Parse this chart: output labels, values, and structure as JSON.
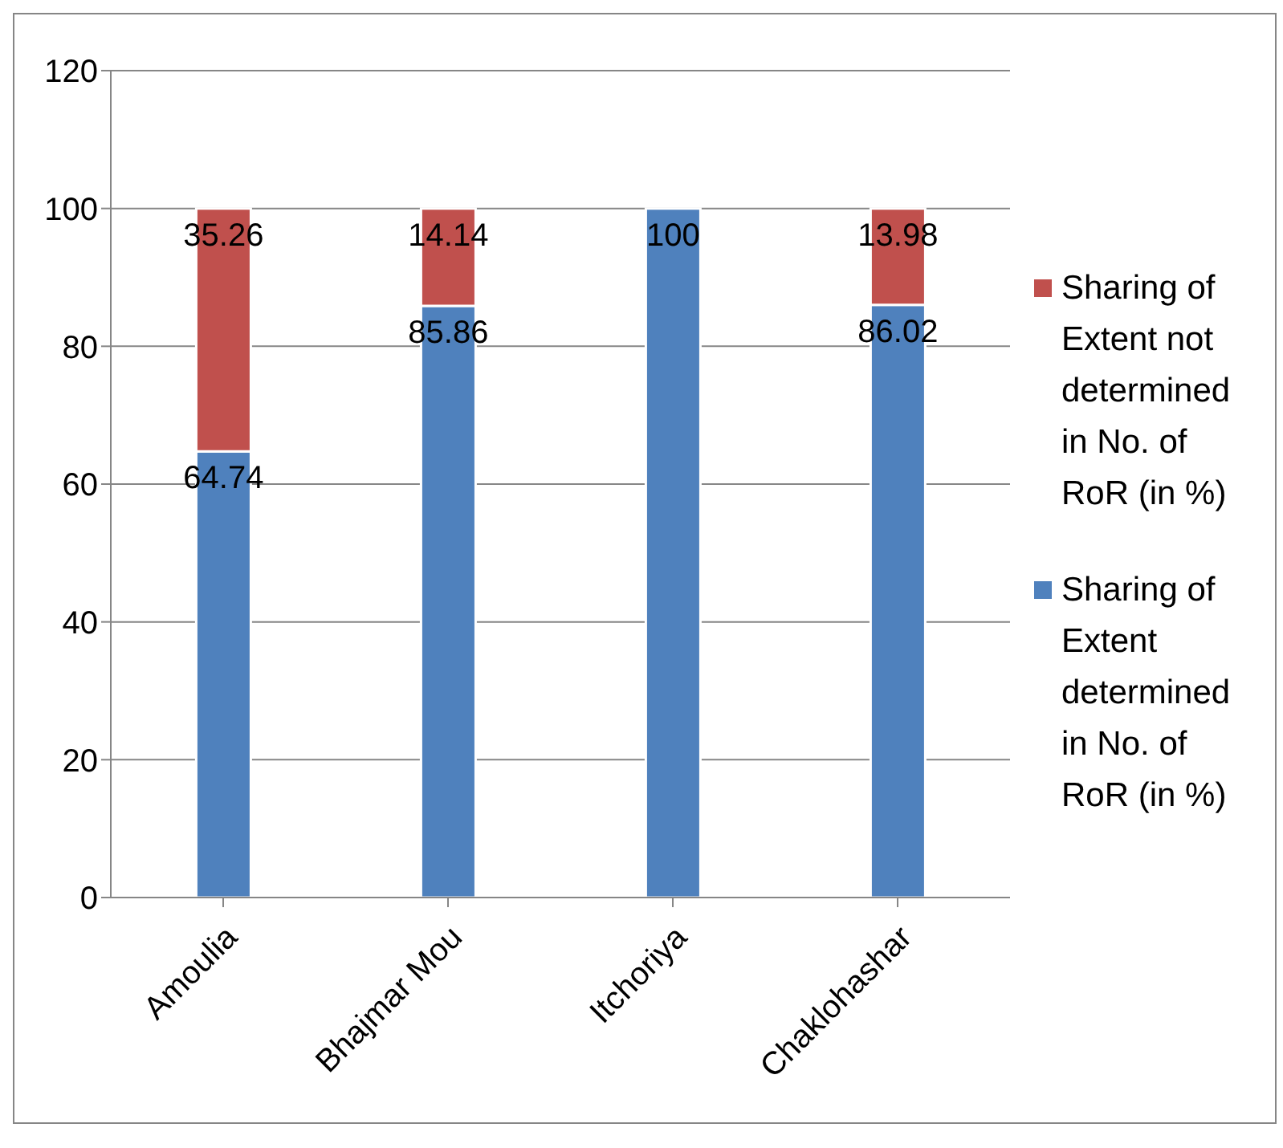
{
  "chart_data": {
    "type": "bar",
    "stacked": true,
    "categories": [
      "Amoulia",
      "Bhajmar Mou",
      "Itchoriya",
      "Chaklohashar"
    ],
    "series": [
      {
        "name": "Sharing of Extent determined in No. of RoR (in %)",
        "color": "#4f81bd",
        "values": [
          64.74,
          85.86,
          100,
          86.02
        ],
        "value_labels": [
          "64.74",
          "85.86",
          "100",
          "86.02"
        ]
      },
      {
        "name": "Sharing of Extent not determined in No. of RoR (in %)",
        "color": "#c0504d",
        "values": [
          35.26,
          14.14,
          0,
          13.98
        ],
        "value_labels": [
          "35.26",
          "14.14",
          null,
          "13.98"
        ]
      }
    ],
    "ylim": [
      0,
      120
    ],
    "yticks": [
      0,
      20,
      40,
      60,
      80,
      100,
      120
    ],
    "grid": "y",
    "legend": "right"
  }
}
